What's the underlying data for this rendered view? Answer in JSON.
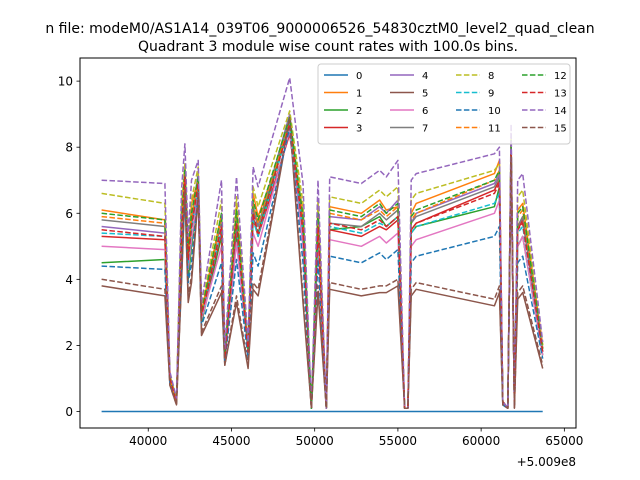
{
  "chart_data": {
    "type": "line",
    "suptitle": "n file: modeM0/AS1A14_039T06_9000006526_54830cztM0_level2_quad_clean",
    "title": "Quadrant 3 module wise count rates with 100.0s bins.",
    "xlabel": "",
    "ylabel": "",
    "offset_text": "+5.009e8",
    "x_offset": 500900000,
    "xlim": [
      35900,
      65700
    ],
    "ylim": [
      -0.5,
      10.7
    ],
    "xticks": [
      40000,
      45000,
      50000,
      55000,
      60000,
      65000
    ],
    "xtick_labels": [
      "40000",
      "45000",
      "50000",
      "55000",
      "60000",
      "65000"
    ],
    "yticks": [
      0,
      2,
      4,
      6,
      8,
      10
    ],
    "ytick_labels": [
      "0",
      "2",
      "4",
      "6",
      "8",
      "10"
    ],
    "grid": false,
    "legend_position": "top-right",
    "legend_columns": 4,
    "x": [
      37200,
      41000,
      41300,
      41700,
      42000,
      42200,
      42400,
      42600,
      43000,
      43200,
      44400,
      44600,
      45300,
      46000,
      46300,
      46600,
      48500,
      49300,
      49800,
      50200,
      50700,
      50900,
      52800,
      53900,
      54300,
      55000,
      55400,
      55600,
      55800,
      56100,
      60800,
      61100,
      61300,
      61600,
      61800,
      62000,
      62200,
      62500,
      63700
    ],
    "series": [
      {
        "name": "0",
        "color": "#1f77b4",
        "dash": "solid",
        "values": [
          0,
          0,
          0,
          0,
          0,
          0,
          0,
          0,
          0,
          0,
          0,
          0,
          0,
          0,
          0,
          0,
          0,
          0,
          0,
          0,
          0,
          0,
          0,
          0,
          0,
          0,
          0,
          0,
          0,
          0,
          0,
          0,
          0,
          0,
          0,
          0,
          0,
          0,
          0
        ]
      },
      {
        "name": "1",
        "color": "#ff7f0e",
        "dash": "solid",
        "values": [
          6.1,
          5.8,
          1.0,
          0.4,
          6.0,
          7.2,
          4.5,
          6.3,
          7.0,
          3.0,
          6.0,
          1.8,
          6.2,
          2.0,
          6.6,
          5.9,
          8.6,
          6.0,
          0.1,
          6.1,
          0.1,
          6.2,
          6.0,
          6.4,
          6.1,
          6.2,
          0.1,
          0.1,
          6.0,
          6.3,
          7.2,
          7.6,
          0.3,
          0.1,
          8.0,
          0.2,
          6.1,
          6.3,
          2.0
        ]
      },
      {
        "name": "2",
        "color": "#2ca02c",
        "dash": "solid",
        "values": [
          4.5,
          4.6,
          0.9,
          0.3,
          5.0,
          6.8,
          4.0,
          5.0,
          6.8,
          2.7,
          5.3,
          1.6,
          5.4,
          1.8,
          5.8,
          5.4,
          8.9,
          5.6,
          0.1,
          5.4,
          0.1,
          5.5,
          5.6,
          5.9,
          5.6,
          5.9,
          0.1,
          0.1,
          5.4,
          5.6,
          6.2,
          6.8,
          0.2,
          0.1,
          7.7,
          0.2,
          5.0,
          5.3,
          1.7
        ]
      },
      {
        "name": "3",
        "color": "#d62728",
        "dash": "solid",
        "values": [
          5.3,
          5.2,
          1.0,
          0.3,
          5.2,
          7.0,
          4.6,
          5.7,
          6.6,
          2.9,
          5.4,
          1.6,
          5.6,
          1.9,
          5.9,
          5.3,
          8.4,
          5.2,
          0.1,
          5.5,
          0.1,
          5.5,
          5.3,
          5.6,
          5.5,
          5.8,
          0.1,
          0.1,
          5.5,
          5.7,
          6.7,
          7.0,
          0.3,
          0.1,
          7.8,
          0.2,
          5.5,
          5.8,
          1.8
        ]
      },
      {
        "name": "4",
        "color": "#9467bd",
        "dash": "solid",
        "values": [
          5.6,
          5.4,
          1.0,
          0.3,
          5.4,
          7.4,
          4.8,
          5.8,
          7.2,
          3.0,
          5.8,
          1.7,
          5.9,
          1.9,
          6.2,
          5.6,
          9.0,
          5.7,
          0.1,
          5.8,
          0.1,
          5.9,
          5.8,
          6.2,
          6.0,
          6.4,
          0.1,
          0.1,
          5.7,
          6.0,
          6.9,
          7.2,
          0.3,
          0.1,
          8.2,
          0.2,
          5.6,
          5.9,
          1.9
        ]
      },
      {
        "name": "5",
        "color": "#8c564b",
        "dash": "solid",
        "values": [
          3.8,
          3.5,
          0.8,
          0.2,
          3.9,
          6.6,
          3.3,
          3.9,
          6.5,
          2.3,
          3.6,
          1.4,
          3.3,
          1.3,
          3.7,
          3.5,
          8.8,
          3.3,
          0.1,
          3.6,
          0.1,
          3.7,
          3.5,
          3.6,
          3.6,
          3.8,
          0.1,
          0.1,
          3.5,
          3.7,
          3.2,
          3.6,
          0.2,
          0.1,
          7.6,
          0.1,
          3.4,
          3.6,
          1.3
        ]
      },
      {
        "name": "6",
        "color": "#e377c2",
        "dash": "solid",
        "values": [
          5.0,
          4.9,
          0.9,
          0.3,
          5.0,
          7.0,
          4.3,
          5.2,
          6.7,
          2.8,
          5.0,
          1.5,
          5.1,
          1.8,
          5.4,
          5.0,
          8.5,
          5.0,
          0.1,
          5.1,
          0.1,
          5.2,
          5.0,
          5.3,
          5.1,
          5.4,
          0.1,
          0.1,
          5.0,
          5.2,
          6.0,
          6.4,
          0.3,
          0.1,
          7.6,
          0.2,
          5.0,
          5.3,
          1.7
        ]
      },
      {
        "name": "7",
        "color": "#7f7f7f",
        "dash": "solid",
        "values": [
          5.8,
          5.6,
          1.0,
          0.3,
          5.6,
          7.3,
          4.7,
          5.9,
          7.1,
          3.0,
          5.8,
          1.7,
          5.8,
          1.9,
          6.1,
          5.6,
          8.9,
          5.5,
          0.1,
          5.6,
          0.1,
          5.7,
          5.6,
          6.0,
          5.8,
          6.1,
          0.1,
          0.1,
          5.7,
          5.9,
          6.8,
          7.1,
          0.3,
          0.1,
          8.1,
          0.2,
          5.6,
          5.9,
          1.9
        ]
      },
      {
        "name": "8",
        "color": "#bcbd22",
        "dash": "dashed",
        "values": [
          6.6,
          6.3,
          1.1,
          0.4,
          6.2,
          7.5,
          5.0,
          6.4,
          7.4,
          3.1,
          6.4,
          1.8,
          6.5,
          2.0,
          6.8,
          6.2,
          9.1,
          6.3,
          0.1,
          6.4,
          0.1,
          6.5,
          6.3,
          6.7,
          6.5,
          6.8,
          0.1,
          0.1,
          6.4,
          6.6,
          7.3,
          7.5,
          0.3,
          0.1,
          8.3,
          0.2,
          6.5,
          6.7,
          2.0
        ]
      },
      {
        "name": "9",
        "color": "#17becf",
        "dash": "dashed",
        "values": [
          5.4,
          5.3,
          1.0,
          0.3,
          5.3,
          7.1,
          4.5,
          5.5,
          6.9,
          2.9,
          5.5,
          1.6,
          5.6,
          1.8,
          5.8,
          5.3,
          8.7,
          5.4,
          0.1,
          5.5,
          0.1,
          5.6,
          5.4,
          5.7,
          5.6,
          5.9,
          0.1,
          0.1,
          5.4,
          5.6,
          6.3,
          6.6,
          0.3,
          0.1,
          7.9,
          0.2,
          5.4,
          5.6,
          1.8
        ]
      },
      {
        "name": "10",
        "color": "#1f77b4",
        "dash": "dashed",
        "values": [
          4.4,
          4.3,
          0.9,
          0.3,
          4.4,
          6.7,
          3.9,
          4.5,
          6.6,
          2.6,
          4.5,
          1.5,
          4.6,
          1.6,
          4.8,
          4.4,
          8.6,
          4.5,
          0.1,
          4.6,
          0.1,
          4.7,
          4.5,
          4.8,
          4.6,
          4.9,
          0.1,
          0.1,
          4.5,
          4.7,
          5.3,
          5.6,
          0.2,
          0.1,
          7.5,
          0.2,
          4.5,
          4.7,
          1.6
        ]
      },
      {
        "name": "11",
        "color": "#ff7f0e",
        "dash": "dashed",
        "values": [
          5.9,
          5.7,
          1.0,
          0.3,
          5.7,
          7.2,
          4.7,
          5.9,
          7.0,
          3.0,
          5.9,
          1.7,
          6.0,
          1.9,
          6.3,
          5.7,
          8.8,
          5.8,
          0.1,
          5.9,
          0.1,
          6.0,
          5.8,
          6.1,
          5.9,
          6.2,
          0.1,
          0.1,
          5.8,
          6.0,
          7.0,
          7.3,
          0.3,
          0.1,
          8.1,
          0.2,
          5.9,
          6.1,
          1.9
        ]
      },
      {
        "name": "12",
        "color": "#2ca02c",
        "dash": "dashed",
        "values": [
          6.0,
          5.8,
          1.0,
          0.3,
          5.8,
          7.3,
          4.8,
          6.0,
          7.1,
          3.0,
          6.0,
          1.7,
          6.1,
          1.9,
          6.4,
          5.8,
          8.9,
          5.9,
          0.1,
          6.0,
          0.1,
          6.1,
          5.9,
          6.3,
          6.0,
          6.3,
          0.1,
          0.1,
          5.9,
          6.1,
          7.0,
          7.3,
          0.3,
          0.1,
          8.2,
          0.2,
          6.0,
          6.2,
          1.9
        ]
      },
      {
        "name": "13",
        "color": "#d62728",
        "dash": "dashed",
        "values": [
          5.5,
          5.3,
          1.0,
          0.3,
          5.3,
          7.1,
          4.6,
          5.6,
          6.9,
          2.9,
          5.6,
          1.6,
          5.7,
          1.8,
          6.0,
          5.4,
          8.7,
          5.5,
          0.1,
          5.6,
          0.1,
          5.7,
          5.5,
          5.8,
          5.6,
          5.9,
          0.1,
          0.1,
          5.5,
          5.7,
          6.6,
          6.9,
          0.3,
          0.1,
          7.9,
          0.2,
          5.5,
          5.7,
          1.8
        ]
      },
      {
        "name": "14",
        "color": "#9467bd",
        "dash": "dashed",
        "values": [
          7.0,
          6.9,
          1.2,
          0.4,
          6.7,
          8.1,
          5.3,
          7.0,
          7.6,
          3.3,
          7.0,
          1.9,
          7.1,
          2.1,
          7.4,
          6.8,
          10.1,
          6.9,
          0.1,
          7.0,
          0.1,
          7.1,
          6.9,
          7.3,
          7.1,
          7.6,
          0.1,
          0.1,
          7.0,
          7.2,
          7.8,
          8.0,
          0.3,
          0.1,
          8.7,
          0.2,
          7.0,
          7.2,
          2.1
        ]
      },
      {
        "name": "15",
        "color": "#8c564b",
        "dash": "dashed",
        "values": [
          4.0,
          3.7,
          0.8,
          0.2,
          4.0,
          6.7,
          3.5,
          4.1,
          6.6,
          2.4,
          3.8,
          1.4,
          3.5,
          1.4,
          3.9,
          3.7,
          8.9,
          3.5,
          0.1,
          3.8,
          0.1,
          3.9,
          3.7,
          3.8,
          3.8,
          4.0,
          0.1,
          0.1,
          3.7,
          3.9,
          3.4,
          3.8,
          0.2,
          0.1,
          7.7,
          0.1,
          3.6,
          3.8,
          1.4
        ]
      }
    ]
  }
}
